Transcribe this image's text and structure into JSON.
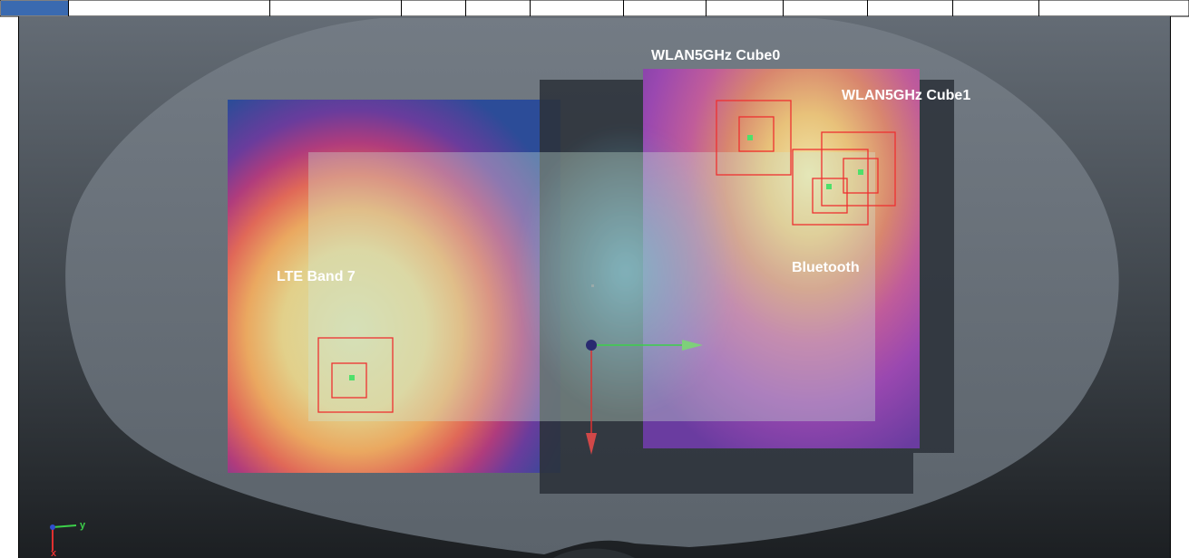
{
  "labels": {
    "wlan_cube0": "WLAN5GHz Cube0",
    "wlan_cube1": "WLAN5GHz Cube1",
    "lte": "LTE Band 7",
    "bluetooth": "Bluetooth"
  },
  "axes": {
    "x": "x",
    "y": "y"
  }
}
